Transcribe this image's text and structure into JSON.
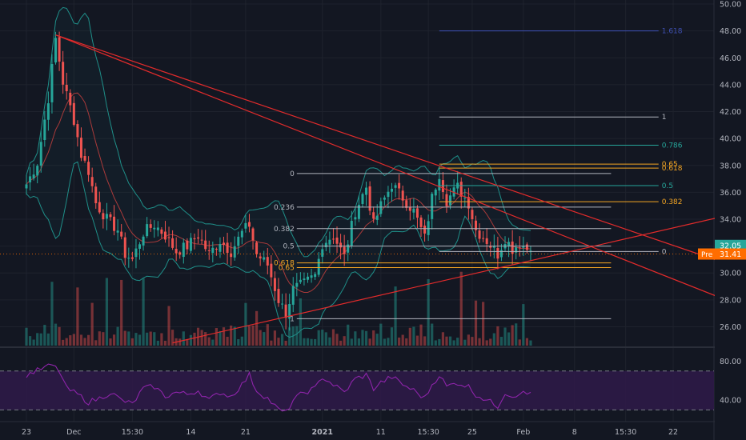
{
  "chart_data": {
    "type": "candlestick",
    "price_axis": {
      "ticks": [
        "50.00",
        "48.00",
        "46.00",
        "44.00",
        "42.00",
        "40.00",
        "38.00",
        "36.00",
        "34.00",
        "32.00",
        "30.00",
        "28.00",
        "26.00"
      ],
      "range": [
        24.6,
        50.3
      ]
    },
    "time_axis": {
      "labels": [
        {
          "text": "23",
          "bar": 0
        },
        {
          "text": "Dec",
          "bar": 13
        },
        {
          "text": "15:30",
          "bar": 29
        },
        {
          "text": "14",
          "bar": 45
        },
        {
          "text": "21",
          "bar": 60
        },
        {
          "text": "2021",
          "bar": 81
        },
        {
          "text": "11",
          "bar": 97
        },
        {
          "text": "15:30",
          "bar": 110
        },
        {
          "text": "25",
          "bar": 122
        },
        {
          "text": "Feb",
          "bar": 136
        },
        {
          "text": "8",
          "bar": 150
        },
        {
          "text": "15:30",
          "bar": 164
        },
        {
          "text": "22",
          "bar": 177
        }
      ],
      "bar_count": 196
    },
    "price_anchors": [
      [
        0,
        36.6
      ],
      [
        3,
        38.2
      ],
      [
        6,
        43.0
      ],
      [
        8,
        47.4
      ],
      [
        10,
        44.2
      ],
      [
        13,
        41.4
      ],
      [
        15,
        38.8
      ],
      [
        17,
        37.6
      ],
      [
        19,
        35.2
      ],
      [
        22,
        34.0
      ],
      [
        25,
        33.2
      ],
      [
        27,
        31.4
      ],
      [
        29,
        31.0
      ],
      [
        32,
        33.0
      ],
      [
        35,
        33.6
      ],
      [
        38,
        32.8
      ],
      [
        41,
        31.6
      ],
      [
        44,
        32.0
      ],
      [
        47,
        32.8
      ],
      [
        50,
        31.4
      ],
      [
        53,
        32.4
      ],
      [
        56,
        31.6
      ],
      [
        59,
        33.0
      ],
      [
        61,
        33.6
      ],
      [
        63,
        31.4
      ],
      [
        66,
        30.6
      ],
      [
        69,
        28.0
      ],
      [
        71,
        27.0
      ],
      [
        73,
        28.8
      ],
      [
        76,
        29.2
      ],
      [
        79,
        29.8
      ],
      [
        81,
        32.2
      ],
      [
        84,
        32.8
      ],
      [
        87,
        31.2
      ],
      [
        90,
        34.6
      ],
      [
        93,
        36.4
      ],
      [
        95,
        33.6
      ],
      [
        97,
        35.0
      ],
      [
        100,
        36.6
      ],
      [
        103,
        35.6
      ],
      [
        106,
        34.6
      ],
      [
        109,
        32.6
      ],
      [
        111,
        35.6
      ],
      [
        113,
        37.4
      ],
      [
        115,
        35.4
      ],
      [
        118,
        36.4
      ],
      [
        121,
        35.2
      ],
      [
        123,
        33.2
      ],
      [
        126,
        32.4
      ],
      [
        129,
        31.4
      ],
      [
        131,
        32.6
      ],
      [
        133,
        31.8
      ],
      [
        135,
        32.2
      ],
      [
        137,
        31.8
      ],
      [
        138,
        32.1
      ]
    ],
    "current_price": "32.05",
    "previous_close": "31.41",
    "pre_label": "Pre",
    "previous_close_level": 31.41,
    "trendlines": [
      {
        "from": [
          8,
          47.7
        ],
        "to": [
          197,
          27.4
        ]
      },
      {
        "from": [
          8,
          47.7
        ],
        "to": [
          197,
          30.2
        ]
      },
      {
        "from": [
          40,
          24.8
        ],
        "to": [
          197,
          34.6
        ]
      }
    ],
    "fib_left": {
      "bar_start": 74,
      "bar_end": 160,
      "levels": [
        {
          "label": "0",
          "price": 37.4
        },
        {
          "label": "0.236",
          "price": 34.9
        },
        {
          "label": "0.382",
          "price": 33.3
        },
        {
          "label": "0.5",
          "price": 32.0
        },
        {
          "label": "0.618",
          "price": 30.75
        },
        {
          "label": "0.65",
          "price": 30.4
        },
        {
          "label": "1",
          "price": 26.6
        }
      ]
    },
    "fib_right": {
      "bar_start": 113,
      "bar_end": 173,
      "levels": [
        {
          "label": "1.618",
          "price": 48.0
        },
        {
          "label": "1",
          "price": 41.6
        },
        {
          "label": "0.786",
          "price": 39.5
        },
        {
          "label": "0.65",
          "price": 38.1
        },
        {
          "label": "0.618",
          "price": 37.8
        },
        {
          "label": "0.5",
          "price": 36.5
        },
        {
          "label": "0.382",
          "price": 35.3
        },
        {
          "label": "0",
          "price": 31.6
        }
      ]
    },
    "rsi": {
      "ticks": [
        "80.00",
        "40.00"
      ],
      "range": [
        18,
        92
      ],
      "upper_band": 70,
      "lower_band": 30,
      "anchors": [
        [
          0,
          66
        ],
        [
          4,
          72
        ],
        [
          7,
          76
        ],
        [
          9,
          70
        ],
        [
          11,
          52
        ],
        [
          14,
          46
        ],
        [
          17,
          38
        ],
        [
          20,
          42
        ],
        [
          23,
          48
        ],
        [
          26,
          40
        ],
        [
          29,
          36
        ],
        [
          32,
          52
        ],
        [
          35,
          54
        ],
        [
          38,
          44
        ],
        [
          41,
          48
        ],
        [
          44,
          46
        ],
        [
          47,
          50
        ],
        [
          50,
          40
        ],
        [
          53,
          48
        ],
        [
          56,
          44
        ],
        [
          59,
          56
        ],
        [
          61,
          66
        ],
        [
          63,
          50
        ],
        [
          66,
          42
        ],
        [
          69,
          30
        ],
        [
          71,
          27
        ],
        [
          73,
          40
        ],
        [
          76,
          48
        ],
        [
          79,
          52
        ],
        [
          81,
          64
        ],
        [
          84,
          56
        ],
        [
          87,
          48
        ],
        [
          90,
          62
        ],
        [
          93,
          66
        ],
        [
          95,
          52
        ],
        [
          97,
          58
        ],
        [
          100,
          64
        ],
        [
          103,
          56
        ],
        [
          106,
          50
        ],
        [
          109,
          42
        ],
        [
          111,
          56
        ],
        [
          113,
          66
        ],
        [
          115,
          54
        ],
        [
          118,
          58
        ],
        [
          121,
          54
        ],
        [
          123,
          46
        ],
        [
          126,
          40
        ],
        [
          129,
          34
        ],
        [
          131,
          48
        ],
        [
          133,
          44
        ],
        [
          135,
          48
        ],
        [
          137,
          46
        ],
        [
          138,
          48
        ]
      ]
    },
    "colors": {
      "background": "#131722",
      "up": "#26a69a",
      "down": "#ef5350",
      "trendline": "#e32b2b",
      "bollinger": "#1f8f89",
      "ma": "#a93a3a",
      "rsi_line": "#8e24aa",
      "rsi_fill": "#2e1a47",
      "fib_blue": "#3f51b5",
      "fib_teal": "#26a69a",
      "fib_orange": "#f5a623",
      "fib_gray": "#b2b5be",
      "price_tag": "#26a69a",
      "pre_tag": "#ff6d00",
      "axis_text": "#b2b5be"
    }
  }
}
